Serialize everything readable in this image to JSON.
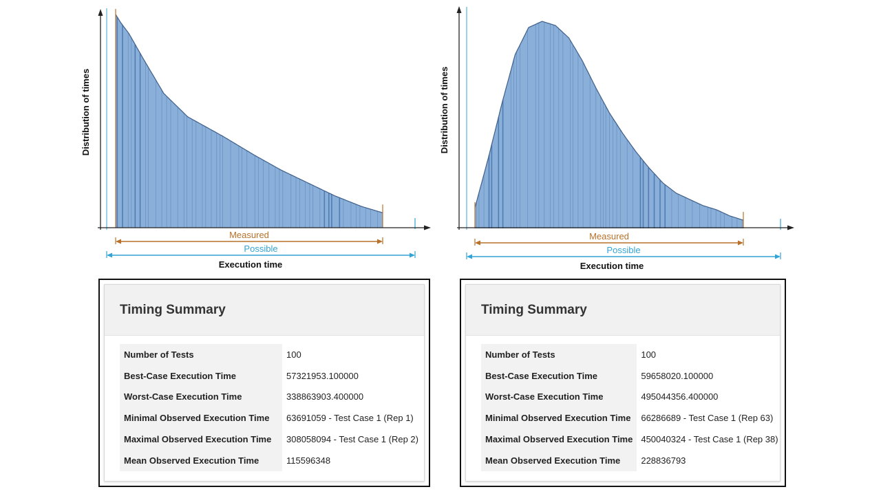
{
  "chart_data": [
    {
      "type": "area",
      "xlabel": "Execution time",
      "ylabel": "Distribution of times",
      "range_labels": {
        "measured": "Measured",
        "possible": "Possible"
      },
      "curve": [
        [
          0,
          1.0
        ],
        [
          2,
          0.96
        ],
        [
          5,
          0.91
        ],
        [
          10,
          0.8
        ],
        [
          18,
          0.63
        ],
        [
          27,
          0.52
        ],
        [
          40,
          0.43
        ],
        [
          52,
          0.34
        ],
        [
          62,
          0.27
        ],
        [
          72,
          0.21
        ],
        [
          82,
          0.15
        ],
        [
          92,
          0.1
        ],
        [
          100,
          0.07
        ]
      ],
      "possible_range": [
        -3,
        113
      ],
      "emphasis": [
        [
          0,
          4
        ],
        [
          7,
          11
        ],
        [
          78,
          85
        ]
      ],
      "colors": {
        "fill": "#8aafd8",
        "stroke": "#4a78b3",
        "measured": "#b8712a",
        "possible": "#33a4d6"
      }
    },
    {
      "type": "area",
      "xlabel": "Execution time",
      "ylabel": "Distribution of times",
      "range_labels": {
        "measured": "Measured",
        "possible": "Possible"
      },
      "curve": [
        [
          0,
          0.1
        ],
        [
          5,
          0.34
        ],
        [
          10,
          0.6
        ],
        [
          15,
          0.84
        ],
        [
          20,
          0.97
        ],
        [
          25,
          1.0
        ],
        [
          30,
          0.98
        ],
        [
          35,
          0.92
        ],
        [
          40,
          0.81
        ],
        [
          45,
          0.68
        ],
        [
          50,
          0.56
        ],
        [
          55,
          0.46
        ],
        [
          60,
          0.37
        ],
        [
          65,
          0.29
        ],
        [
          70,
          0.22
        ],
        [
          75,
          0.17
        ],
        [
          80,
          0.14
        ],
        [
          85,
          0.11
        ],
        [
          90,
          0.09
        ],
        [
          95,
          0.06
        ],
        [
          100,
          0.04
        ]
      ],
      "possible_range": [
        -3,
        116
      ],
      "emphasis": [
        [
          5,
          12
        ],
        [
          60,
          72
        ]
      ],
      "colors": {
        "fill": "#8aafd8",
        "stroke": "#4a78b3",
        "measured": "#b8712a",
        "possible": "#33a4d6"
      }
    }
  ],
  "summaries": [
    {
      "title": "Timing Summary",
      "rows": [
        {
          "label": "Number of Tests",
          "value": "100"
        },
        {
          "label": "Best-Case Execution Time",
          "value": "57321953.100000"
        },
        {
          "label": "Worst-Case Execution Time",
          "value": "338863903.400000"
        },
        {
          "label": "Minimal Observed Execution Time",
          "value": "63691059 - Test Case 1 (Rep 1)"
        },
        {
          "label": "Maximal Observed Execution Time",
          "value": "308058094 - Test Case 1 (Rep 2)"
        },
        {
          "label": "Mean Observed Execution Time",
          "value": "115596348"
        }
      ]
    },
    {
      "title": "Timing Summary",
      "rows": [
        {
          "label": "Number of Tests",
          "value": "100"
        },
        {
          "label": "Best-Case Execution Time",
          "value": "59658020.100000"
        },
        {
          "label": "Worst-Case Execution Time",
          "value": "495044356.400000"
        },
        {
          "label": "Minimal Observed Execution Time",
          "value": "66286689 - Test Case 1 (Rep 63)"
        },
        {
          "label": "Maximal Observed Execution Time",
          "value": "450040324 - Test Case 1 (Rep 38)"
        },
        {
          "label": "Mean Observed Execution Time",
          "value": "228836793"
        }
      ]
    }
  ]
}
